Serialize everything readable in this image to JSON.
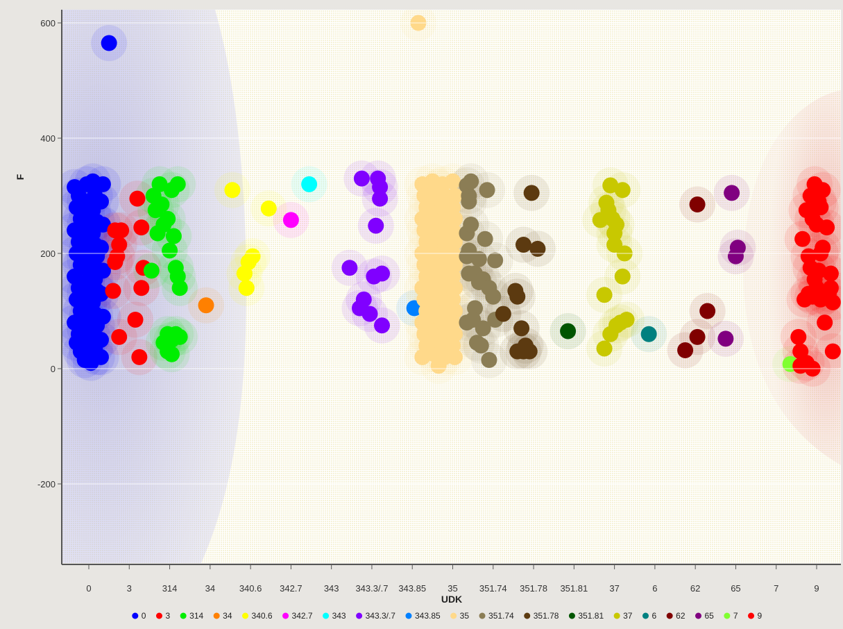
{
  "chart_data": {
    "type": "scatter",
    "xlabel": "UDK",
    "ylabel": "F",
    "x_categories": [
      "0",
      "3",
      "314",
      "34",
      "340.6",
      "342.7",
      "343",
      "343.3/.7",
      "343.85",
      "35",
      "351.74",
      "351.78",
      "351.81",
      "37",
      "6",
      "62",
      "65",
      "7",
      "9"
    ],
    "ylim": [
      -340,
      620
    ],
    "yticks": [
      -200,
      0,
      200,
      400,
      600
    ],
    "legend_position": "bottom",
    "series": [
      {
        "name": "0",
        "color": "#0000ff",
        "points": [
          [
            -0.35,
            315
          ],
          [
            -0.25,
            300
          ],
          [
            -0.3,
            280
          ],
          [
            -0.2,
            260
          ],
          [
            -0.35,
            240
          ],
          [
            -0.25,
            220
          ],
          [
            -0.3,
            200
          ],
          [
            -0.2,
            180
          ],
          [
            -0.35,
            160
          ],
          [
            -0.25,
            140
          ],
          [
            -0.3,
            120
          ],
          [
            -0.2,
            100
          ],
          [
            -0.35,
            80
          ],
          [
            -0.25,
            60
          ],
          [
            -0.3,
            45
          ],
          [
            -0.2,
            30
          ],
          [
            -0.05,
            320
          ],
          [
            -0.1,
            290
          ],
          [
            -0.05,
            270
          ],
          [
            -0.1,
            250
          ],
          [
            0,
            230
          ],
          [
            -0.05,
            210
          ],
          [
            -0.1,
            190
          ],
          [
            0,
            170
          ],
          [
            -0.05,
            150
          ],
          [
            -0.1,
            130
          ],
          [
            0,
            110
          ],
          [
            -0.05,
            90
          ],
          [
            -0.1,
            70
          ],
          [
            0,
            50
          ],
          [
            -0.05,
            30
          ],
          [
            -0.1,
            15
          ],
          [
            0.1,
            325
          ],
          [
            0.15,
            300
          ],
          [
            0.1,
            275
          ],
          [
            0.2,
            255
          ],
          [
            0.1,
            235
          ],
          [
            0.15,
            215
          ],
          [
            0.2,
            195
          ],
          [
            0.1,
            175
          ],
          [
            0.15,
            155
          ],
          [
            0.2,
            135
          ],
          [
            0.1,
            115
          ],
          [
            0.15,
            95
          ],
          [
            0.2,
            75
          ],
          [
            0.1,
            55
          ],
          [
            0.15,
            35
          ],
          [
            0.05,
            10
          ],
          [
            0.2,
            20
          ],
          [
            0.35,
            320
          ],
          [
            0.3,
            290
          ],
          [
            0.35,
            250
          ],
          [
            0.3,
            210
          ],
          [
            0.35,
            170
          ],
          [
            0.3,
            130
          ],
          [
            0.35,
            90
          ],
          [
            0.3,
            50
          ],
          [
            0.3,
            20
          ],
          [
            0.5,
            565
          ]
        ]
      },
      {
        "name": "3",
        "color": "#ff0000",
        "points": [
          [
            0.65,
            240
          ],
          [
            0.75,
            215
          ],
          [
            0.7,
            195
          ],
          [
            0.65,
            185
          ],
          [
            0.6,
            135
          ],
          [
            0.8,
            240
          ],
          [
            0.75,
            55
          ],
          [
            1.2,
            295
          ],
          [
            1.3,
            245
          ],
          [
            1.35,
            175
          ],
          [
            1.3,
            140
          ],
          [
            1.15,
            85
          ],
          [
            1.25,
            20
          ]
        ]
      },
      {
        "name": "314",
        "color": "#00ee00",
        "points": [
          [
            1.55,
            170
          ],
          [
            1.6,
            300
          ],
          [
            1.65,
            275
          ],
          [
            1.75,
            320
          ],
          [
            1.85,
            250
          ],
          [
            1.7,
            235
          ],
          [
            1.8,
            285
          ],
          [
            1.95,
            260
          ],
          [
            2.05,
            310
          ],
          [
            2.2,
            320
          ],
          [
            2.1,
            230
          ],
          [
            2.0,
            205
          ],
          [
            2.15,
            175
          ],
          [
            2.2,
            160
          ],
          [
            2.25,
            140
          ],
          [
            1.85,
            45
          ],
          [
            1.95,
            60
          ],
          [
            2.05,
            50
          ],
          [
            2.15,
            60
          ],
          [
            1.95,
            30
          ],
          [
            2.05,
            25
          ],
          [
            2.25,
            55
          ]
        ]
      },
      {
        "name": "34",
        "color": "#ff8000",
        "points": [
          [
            2.9,
            110
          ]
        ]
      },
      {
        "name": "340.6",
        "color": "#ffff00",
        "points": [
          [
            3.55,
            310
          ],
          [
            3.85,
            165
          ],
          [
            3.95,
            185
          ],
          [
            4.05,
            195
          ],
          [
            3.9,
            140
          ],
          [
            4.45,
            278
          ]
        ]
      },
      {
        "name": "342.7",
        "color": "#ff00ff",
        "points": [
          [
            5.0,
            258
          ]
        ]
      },
      {
        "name": "343",
        "color": "#00ffff",
        "points": [
          [
            5.45,
            320
          ]
        ]
      },
      {
        "name": "343.3/.7",
        "color": "#8000ff",
        "points": [
          [
            6.45,
            175
          ],
          [
            6.75,
            330
          ],
          [
            6.8,
            120
          ],
          [
            6.7,
            105
          ],
          [
            6.95,
            95
          ],
          [
            7.05,
            160
          ],
          [
            7.15,
            330
          ],
          [
            7.2,
            315
          ],
          [
            7.2,
            295
          ],
          [
            7.1,
            248
          ],
          [
            7.25,
            165
          ],
          [
            7.25,
            75
          ]
        ]
      },
      {
        "name": "343.85",
        "color": "#0080ff",
        "points": [
          [
            8.05,
            105
          ]
        ]
      },
      {
        "name": "35",
        "color": "#ffd98a",
        "points": [
          [
            8.25,
            320
          ],
          [
            8.3,
            300
          ],
          [
            8.35,
            280
          ],
          [
            8.25,
            260
          ],
          [
            8.3,
            240
          ],
          [
            8.35,
            220
          ],
          [
            8.25,
            200
          ],
          [
            8.3,
            180
          ],
          [
            8.35,
            160
          ],
          [
            8.25,
            140
          ],
          [
            8.3,
            120
          ],
          [
            8.35,
            100
          ],
          [
            8.25,
            80
          ],
          [
            8.3,
            60
          ],
          [
            8.35,
            40
          ],
          [
            8.25,
            20
          ],
          [
            8.5,
            325
          ],
          [
            8.55,
            305
          ],
          [
            8.5,
            285
          ],
          [
            8.55,
            265
          ],
          [
            8.5,
            245
          ],
          [
            8.55,
            225
          ],
          [
            8.5,
            205
          ],
          [
            8.55,
            185
          ],
          [
            8.5,
            165
          ],
          [
            8.55,
            145
          ],
          [
            8.5,
            125
          ],
          [
            8.55,
            105
          ],
          [
            8.5,
            85
          ],
          [
            8.55,
            65
          ],
          [
            8.5,
            45
          ],
          [
            8.55,
            25
          ],
          [
            8.75,
            320
          ],
          [
            8.8,
            300
          ],
          [
            8.75,
            280
          ],
          [
            8.8,
            260
          ],
          [
            8.75,
            240
          ],
          [
            8.8,
            220
          ],
          [
            8.75,
            200
          ],
          [
            8.8,
            180
          ],
          [
            8.75,
            160
          ],
          [
            8.8,
            140
          ],
          [
            8.75,
            120
          ],
          [
            8.8,
            100
          ],
          [
            8.75,
            80
          ],
          [
            8.8,
            60
          ],
          [
            8.75,
            40
          ],
          [
            8.8,
            20
          ],
          [
            9.0,
            325
          ],
          [
            9.05,
            300
          ],
          [
            9.0,
            280
          ],
          [
            9.05,
            260
          ],
          [
            9.0,
            240
          ],
          [
            9.05,
            220
          ],
          [
            9.0,
            200
          ],
          [
            9.05,
            180
          ],
          [
            9.0,
            160
          ],
          [
            9.05,
            140
          ],
          [
            9.0,
            120
          ],
          [
            9.05,
            100
          ],
          [
            9.0,
            80
          ],
          [
            9.05,
            60
          ],
          [
            9.0,
            40
          ],
          [
            9.05,
            20
          ],
          [
            8.65,
            5
          ],
          [
            8.65,
            315
          ],
          [
            8.65,
            90
          ],
          [
            8.15,
            600
          ]
        ]
      },
      {
        "name": "351.74",
        "color": "#8b7d55",
        "points": [
          [
            9.35,
            318
          ],
          [
            9.4,
            300
          ],
          [
            9.45,
            325
          ],
          [
            9.4,
            290
          ],
          [
            9.35,
            235
          ],
          [
            9.45,
            250
          ],
          [
            9.4,
            205
          ],
          [
            9.35,
            195
          ],
          [
            9.4,
            165
          ],
          [
            9.55,
            165
          ],
          [
            9.65,
            150
          ],
          [
            9.75,
            155
          ],
          [
            9.35,
            80
          ],
          [
            9.55,
            105
          ],
          [
            9.5,
            85
          ],
          [
            9.6,
            45
          ],
          [
            9.7,
            40
          ],
          [
            9.75,
            70
          ],
          [
            9.9,
            15
          ],
          [
            9.85,
            310
          ],
          [
            9.8,
            225
          ],
          [
            9.65,
            190
          ],
          [
            9.9,
            140
          ],
          [
            10.05,
            188
          ],
          [
            10.0,
            125
          ],
          [
            10.05,
            85
          ]
        ]
      },
      {
        "name": "351.78",
        "color": "#5c3a10",
        "points": [
          [
            10.25,
            95
          ],
          [
            10.6,
            125
          ],
          [
            10.55,
            135
          ],
          [
            10.7,
            70
          ],
          [
            10.75,
            215
          ],
          [
            10.95,
            305
          ],
          [
            11.1,
            208
          ],
          [
            10.6,
            30
          ],
          [
            10.8,
            40
          ],
          [
            10.9,
            30
          ],
          [
            10.75,
            30
          ]
        ]
      },
      {
        "name": "351.81",
        "color": "#005500",
        "points": [
          [
            11.85,
            65
          ]
        ]
      },
      {
        "name": "37",
        "color": "#c8c800",
        "points": [
          [
            12.65,
            258
          ],
          [
            12.8,
            288
          ],
          [
            12.9,
            318
          ],
          [
            12.85,
            275
          ],
          [
            12.95,
            260
          ],
          [
            13.0,
            235
          ],
          [
            13.05,
            250
          ],
          [
            13.2,
            310
          ],
          [
            12.75,
            128
          ],
          [
            13.0,
            215
          ],
          [
            13.2,
            160
          ],
          [
            13.25,
            200
          ],
          [
            12.75,
            35
          ],
          [
            12.9,
            60
          ],
          [
            13.05,
            75
          ],
          [
            13.15,
            80
          ],
          [
            13.3,
            85
          ]
        ]
      },
      {
        "name": "6",
        "color": "#008080",
        "points": [
          [
            13.85,
            60
          ]
        ]
      },
      {
        "name": "62",
        "color": "#800000",
        "points": [
          [
            14.75,
            32
          ],
          [
            15.05,
            55
          ],
          [
            15.05,
            285
          ],
          [
            15.3,
            100
          ]
        ]
      },
      {
        "name": "65",
        "color": "#800080",
        "points": [
          [
            15.75,
            52
          ],
          [
            15.9,
            305
          ],
          [
            16.05,
            210
          ],
          [
            16.0,
            195
          ]
        ]
      },
      {
        "name": "7",
        "color": "#80ff30",
        "points": [
          [
            17.35,
            8
          ]
        ]
      },
      {
        "name": "9",
        "color": "#ff0000",
        "points": [
          [
            17.6,
            30
          ],
          [
            17.55,
            55
          ],
          [
            17.6,
            5
          ],
          [
            17.75,
            10
          ],
          [
            17.65,
            225
          ],
          [
            17.75,
            275
          ],
          [
            17.85,
            300
          ],
          [
            17.95,
            320
          ],
          [
            18.05,
            290
          ],
          [
            18.15,
            310
          ],
          [
            17.8,
            195
          ],
          [
            17.9,
            260
          ],
          [
            18.0,
            250
          ],
          [
            18.1,
            280
          ],
          [
            18.25,
            245
          ],
          [
            17.85,
            175
          ],
          [
            17.95,
            155
          ],
          [
            18.05,
            170
          ],
          [
            18.1,
            200
          ],
          [
            18.15,
            210
          ],
          [
            17.7,
            120
          ],
          [
            17.8,
            130
          ],
          [
            17.9,
            125
          ],
          [
            18.0,
            140
          ],
          [
            18.1,
            120
          ],
          [
            18.2,
            125
          ],
          [
            18.3,
            130
          ],
          [
            18.35,
            140
          ],
          [
            18.4,
            115
          ],
          [
            18.35,
            165
          ],
          [
            18.2,
            80
          ],
          [
            18.4,
            30
          ],
          [
            17.9,
            0
          ]
        ]
      }
    ]
  }
}
